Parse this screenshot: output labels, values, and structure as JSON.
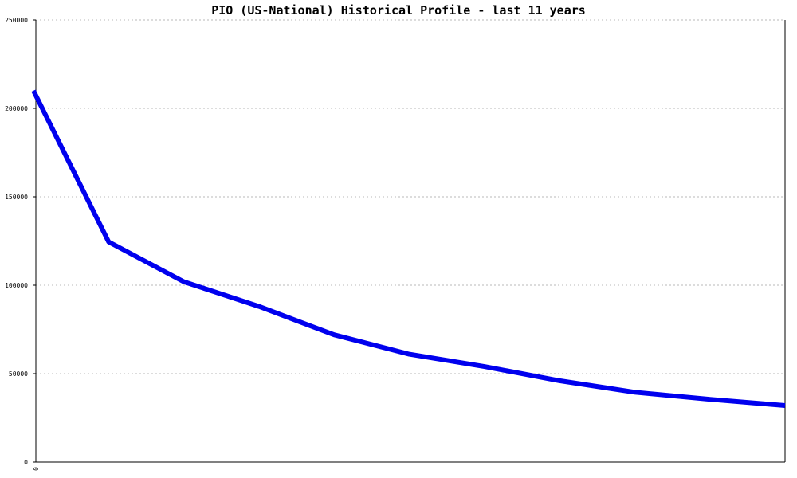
{
  "chart_data": {
    "type": "line",
    "title": "PIO (US-National) Historical Profile - last 11 years",
    "xlabel": "",
    "ylabel": "",
    "ylim": [
      0,
      250000
    ],
    "y_ticks": [
      "0",
      "50000",
      "100000",
      "150000",
      "200000",
      "250000"
    ],
    "x_ticks": [
      "0"
    ],
    "grid": true,
    "series": [
      {
        "color": "#0000ee",
        "values": [
          210000,
          124500,
          102000,
          88000,
          72000,
          61000,
          54000,
          46000,
          39500,
          35500,
          32000
        ]
      }
    ]
  }
}
